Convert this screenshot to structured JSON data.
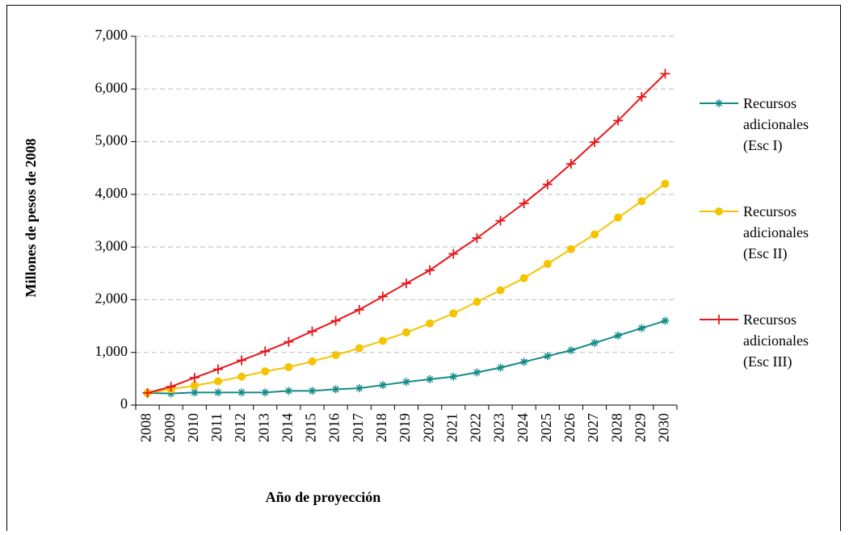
{
  "chart_data": {
    "type": "line",
    "xlabel": "Año de proyección",
    "ylabel": "Millones de pesos de 2008",
    "categories": [
      "2008",
      "2009",
      "2010",
      "2011",
      "2012",
      "2013",
      "2014",
      "2015",
      "2016",
      "2017",
      "2018",
      "2019",
      "2020",
      "2021",
      "2022",
      "2023",
      "2024",
      "2025",
      "2026",
      "2027",
      "2028",
      "2029",
      "2030"
    ],
    "series": [
      {
        "name": "Recursos adicionales (Esc I)",
        "color": "#138a86",
        "marker": "asterisk",
        "values": [
          230,
          220,
          240,
          240,
          240,
          240,
          270,
          270,
          300,
          320,
          380,
          440,
          490,
          540,
          620,
          710,
          820,
          930,
          1040,
          1180,
          1320,
          1460,
          1600
        ]
      },
      {
        "name": "Recursos adicionales (Esc II)",
        "color": "#f5c400",
        "marker": "circle",
        "values": [
          230,
          300,
          370,
          450,
          540,
          640,
          720,
          830,
          950,
          1080,
          1220,
          1380,
          1550,
          1740,
          1960,
          2180,
          2410,
          2680,
          2960,
          3240,
          3560,
          3870,
          4200
        ]
      },
      {
        "name": "Recursos adicionales (Esc III)",
        "color": "#e8161c",
        "marker": "plus",
        "values": [
          230,
          350,
          520,
          680,
          850,
          1020,
          1200,
          1400,
          1600,
          1810,
          2060,
          2310,
          2560,
          2870,
          3170,
          3500,
          3830,
          4190,
          4580,
          4990,
          5400,
          5850,
          6290
        ]
      }
    ],
    "ylim": [
      0,
      7000
    ],
    "yticks": [
      0,
      {
        "value": 1000,
        "label": "1,000"
      },
      {
        "value": 2000,
        "label": "2,000"
      },
      {
        "value": 3000,
        "label": "3,000"
      },
      {
        "value": 4000,
        "label": "4,000"
      },
      {
        "value": 5000,
        "label": "5,000"
      },
      {
        "value": 6000,
        "label": "6,000"
      },
      {
        "value": 7000,
        "label": "7,000"
      }
    ],
    "grid": true,
    "legend": "right"
  }
}
